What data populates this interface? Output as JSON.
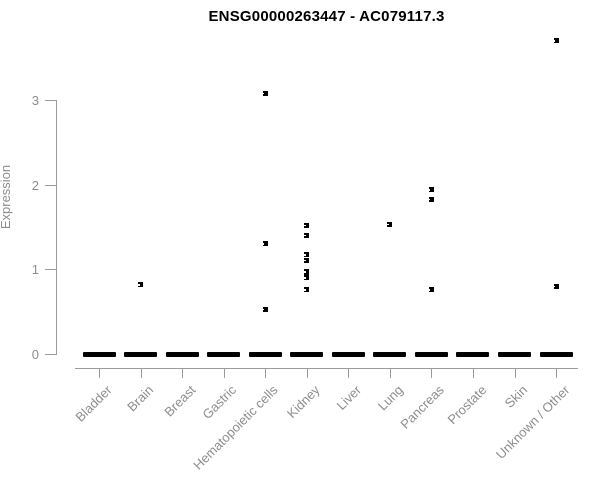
{
  "header": {
    "title": "ENSG00000263447 - AC079117.3"
  },
  "colors": {
    "marker": "#000000",
    "axis_line": "#9b9b9b",
    "axis_text": "#8d8d8d",
    "title_text": "#000000",
    "background": "#ffffff"
  },
  "chart_data": {
    "type": "scatter",
    "title": "ENSG00000263447 - AC079117.3",
    "xlabel": "",
    "ylabel": "Expression",
    "ylim": [
      0,
      3.8
    ],
    "yticks": [
      0,
      1,
      2,
      3
    ],
    "grid": false,
    "legend_position": "none",
    "marker_style": "small black square",
    "categories": [
      "Bladder",
      "Brain",
      "Breast",
      "Gastric",
      "Hematopoietic cells",
      "Kidney",
      "Liver",
      "Lung",
      "Pancreas",
      "Prostate",
      "Skin",
      "Unknown / Other"
    ],
    "series": [
      {
        "category": "Bladder",
        "zero_cluster": true,
        "nonzero_values": []
      },
      {
        "category": "Brain",
        "zero_cluster": true,
        "nonzero_values": [
          0.82
        ]
      },
      {
        "category": "Breast",
        "zero_cluster": true,
        "nonzero_values": []
      },
      {
        "category": "Gastric",
        "zero_cluster": true,
        "nonzero_values": []
      },
      {
        "category": "Hematopoietic cells",
        "zero_cluster": true,
        "nonzero_values": [
          3.08,
          1.3,
          0.53
        ]
      },
      {
        "category": "Kidney",
        "zero_cluster": true,
        "nonzero_values": [
          1.52,
          1.4,
          1.17,
          1.11,
          0.97,
          0.91,
          0.9,
          0.76
        ]
      },
      {
        "category": "Liver",
        "zero_cluster": true,
        "nonzero_values": []
      },
      {
        "category": "Lung",
        "zero_cluster": true,
        "nonzero_values": [
          1.53
        ]
      },
      {
        "category": "Pancreas",
        "zero_cluster": true,
        "nonzero_values": [
          1.94,
          1.83,
          0.76
        ]
      },
      {
        "category": "Prostate",
        "zero_cluster": true,
        "nonzero_values": []
      },
      {
        "category": "Skin",
        "zero_cluster": true,
        "nonzero_values": []
      },
      {
        "category": "Unknown / Other",
        "zero_cluster": true,
        "nonzero_values": [
          3.7,
          0.8
        ]
      }
    ],
    "zero_cluster_meaning": "many overlapping points at expression 0 forming a thick black bar per category"
  }
}
